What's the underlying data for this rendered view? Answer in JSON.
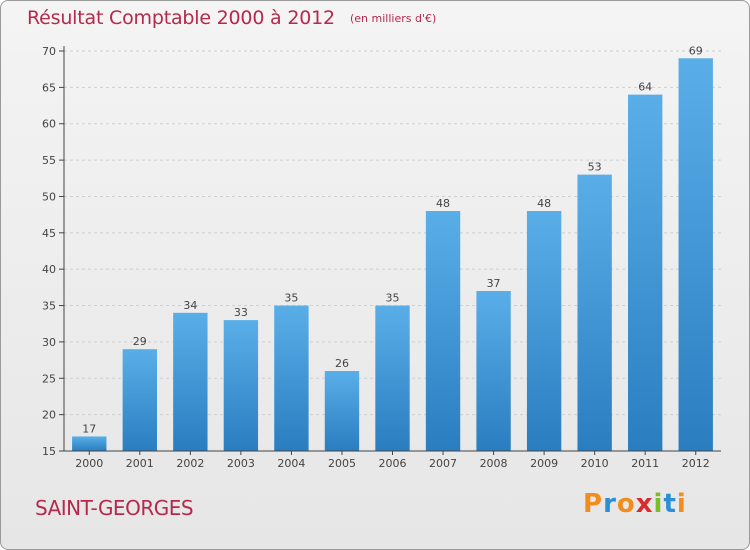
{
  "chart_data": {
    "type": "bar",
    "title": "Résultat Comptable 2000 à 2012",
    "subtitle": "(en milliers d'€)",
    "categories": [
      "2000",
      "2001",
      "2002",
      "2003",
      "2004",
      "2005",
      "2006",
      "2007",
      "2008",
      "2009",
      "2010",
      "2011",
      "2012"
    ],
    "values": [
      17,
      29,
      34,
      33,
      35,
      26,
      35,
      48,
      37,
      48,
      53,
      64,
      69
    ],
    "ylim": [
      15,
      70
    ],
    "yticks": [
      15,
      20,
      25,
      30,
      35,
      40,
      45,
      50,
      55,
      60,
      65,
      70
    ],
    "xlabel": "",
    "ylabel": "",
    "grid": true
  },
  "footer": {
    "place": "SAINT-GEORGES",
    "logo_letters": [
      {
        "char": "P",
        "color": "#f28c1e"
      },
      {
        "char": "r",
        "color": "#2a8fd6"
      },
      {
        "char": "o",
        "color": "#f28c1e"
      },
      {
        "char": "x",
        "color": "#d92b2b"
      },
      {
        "char": "i",
        "color": "#7cbb2a"
      },
      {
        "char": "t",
        "color": "#2a8fd6"
      },
      {
        "char": "i",
        "color": "#f28c1e"
      }
    ]
  },
  "colors": {
    "bar_top": "#5aaee8",
    "bar_bottom": "#2a7ec0",
    "title": "#b5294c",
    "axis": "#444444",
    "grid": "#cfcfcf"
  }
}
